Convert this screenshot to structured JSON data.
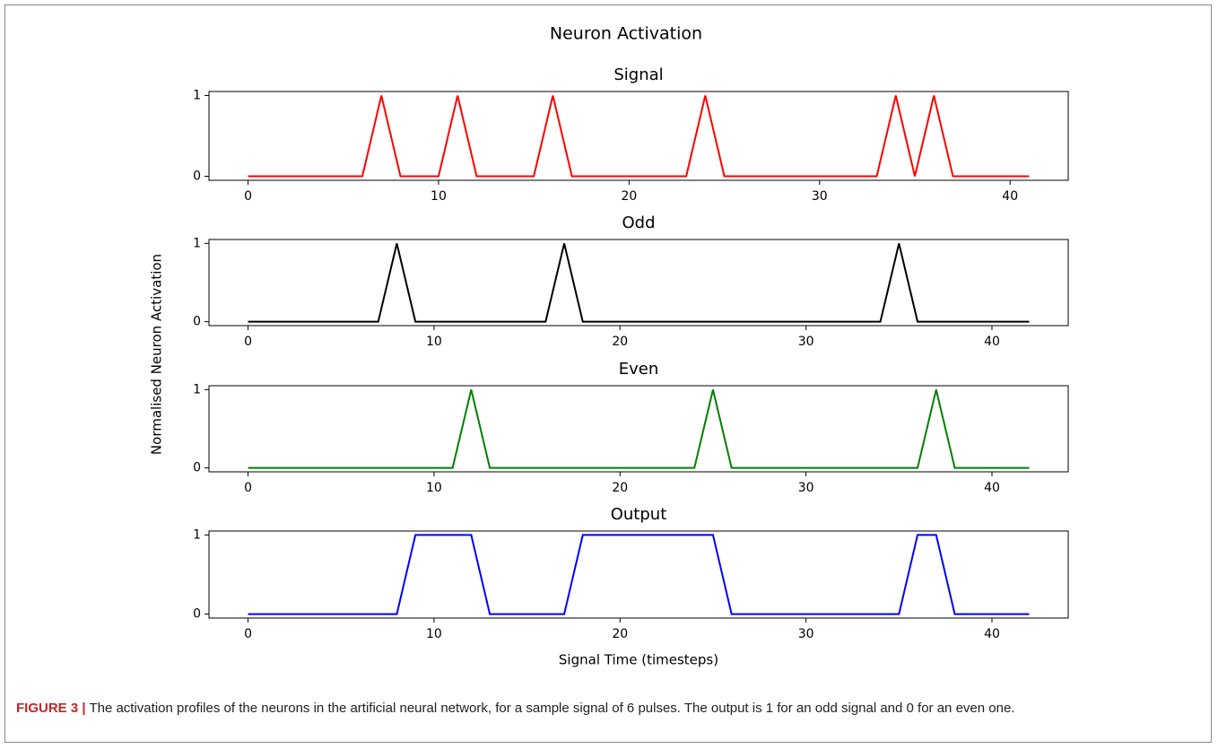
{
  "title": "Neuron Activation",
  "ylabel": "Normalised Neuron Activation",
  "xlabel": "Signal Time (timesteps)",
  "caption": {
    "label": "FIGURE 3 |",
    "text": "The activation profiles of the neurons in the artificial neural network, for a sample signal of 6 pulses. The output is 1 for an odd signal and 0 for an even one."
  },
  "chart_data": [
    {
      "type": "line",
      "title": "Signal",
      "color": "#ff0000",
      "xlim": [
        -2.05,
        43.05
      ],
      "ylim": [
        -0.05,
        1.05
      ],
      "xticks": [
        0,
        10,
        20,
        30,
        40
      ],
      "yticks": [
        0,
        1
      ],
      "x": [
        0,
        1,
        2,
        3,
        4,
        5,
        6,
        7,
        8,
        9,
        10,
        11,
        12,
        13,
        14,
        15,
        16,
        17,
        18,
        19,
        20,
        21,
        22,
        23,
        24,
        25,
        26,
        27,
        28,
        29,
        30,
        31,
        32,
        33,
        34,
        35,
        36,
        37,
        38,
        39,
        40,
        41
      ],
      "values": [
        0,
        0,
        0,
        0,
        0,
        0,
        0,
        1,
        0,
        0,
        0,
        1,
        0,
        0,
        0,
        0,
        1,
        0,
        0,
        0,
        0,
        0,
        0,
        0,
        1,
        0,
        0,
        0,
        0,
        0,
        0,
        0,
        0,
        0,
        1,
        0,
        1,
        0,
        0,
        0,
        0,
        0
      ]
    },
    {
      "type": "line",
      "title": "Odd",
      "color": "#000000",
      "xlim": [
        -2.1,
        44.1
      ],
      "ylim": [
        -0.05,
        1.05
      ],
      "xticks": [
        0,
        10,
        20,
        30,
        40
      ],
      "yticks": [
        0,
        1
      ],
      "x": [
        0,
        1,
        2,
        3,
        4,
        5,
        6,
        7,
        8,
        9,
        10,
        11,
        12,
        13,
        14,
        15,
        16,
        17,
        18,
        19,
        20,
        21,
        22,
        23,
        24,
        25,
        26,
        27,
        28,
        29,
        30,
        31,
        32,
        33,
        34,
        35,
        36,
        37,
        38,
        39,
        40,
        41,
        42
      ],
      "values": [
        0,
        0,
        0,
        0,
        0,
        0,
        0,
        0,
        1,
        0,
        0,
        0,
        0,
        0,
        0,
        0,
        0,
        1,
        0,
        0,
        0,
        0,
        0,
        0,
        0,
        0,
        0,
        0,
        0,
        0,
        0,
        0,
        0,
        0,
        0,
        1,
        0,
        0,
        0,
        0,
        0,
        0,
        0
      ]
    },
    {
      "type": "line",
      "title": "Even",
      "color": "#008000",
      "xlim": [
        -2.1,
        44.1
      ],
      "ylim": [
        -0.05,
        1.05
      ],
      "xticks": [
        0,
        10,
        20,
        30,
        40
      ],
      "yticks": [
        0,
        1
      ],
      "x": [
        0,
        1,
        2,
        3,
        4,
        5,
        6,
        7,
        8,
        9,
        10,
        11,
        12,
        13,
        14,
        15,
        16,
        17,
        18,
        19,
        20,
        21,
        22,
        23,
        24,
        25,
        26,
        27,
        28,
        29,
        30,
        31,
        32,
        33,
        34,
        35,
        36,
        37,
        38,
        39,
        40,
        41,
        42
      ],
      "values": [
        0,
        0,
        0,
        0,
        0,
        0,
        0,
        0,
        0,
        0,
        0,
        0,
        1,
        0,
        0,
        0,
        0,
        0,
        0,
        0,
        0,
        0,
        0,
        0,
        0,
        1,
        0,
        0,
        0,
        0,
        0,
        0,
        0,
        0,
        0,
        0,
        0,
        1,
        0,
        0,
        0,
        0,
        0
      ]
    },
    {
      "type": "line",
      "title": "Output",
      "color": "#0000ff",
      "xlim": [
        -2.1,
        44.1
      ],
      "ylim": [
        -0.05,
        1.05
      ],
      "xticks": [
        0,
        10,
        20,
        30,
        40
      ],
      "yticks": [
        0,
        1
      ],
      "x": [
        0,
        1,
        2,
        3,
        4,
        5,
        6,
        7,
        8,
        9,
        10,
        11,
        12,
        13,
        14,
        15,
        16,
        17,
        18,
        19,
        20,
        21,
        22,
        23,
        24,
        25,
        26,
        27,
        28,
        29,
        30,
        31,
        32,
        33,
        34,
        35,
        36,
        37,
        38,
        39,
        40,
        41,
        42
      ],
      "values": [
        0,
        0,
        0,
        0,
        0,
        0,
        0,
        0,
        0,
        1,
        1,
        1,
        1,
        0,
        0,
        0,
        0,
        0,
        1,
        1,
        1,
        1,
        1,
        1,
        1,
        1,
        0,
        0,
        0,
        0,
        0,
        0,
        0,
        0,
        0,
        0,
        1,
        1,
        0,
        0,
        0,
        0,
        0
      ]
    }
  ]
}
